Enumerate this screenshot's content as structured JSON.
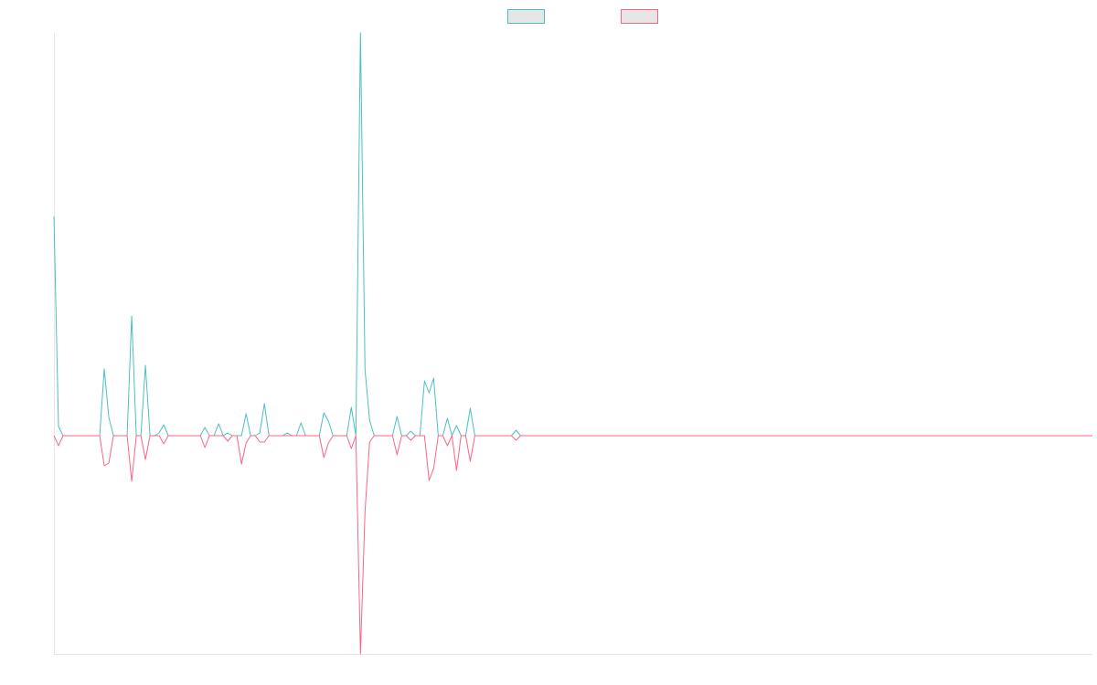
{
  "chart_data": {
    "type": "line",
    "ylim": [
      -23.9,
      44.1
    ],
    "legend": "top",
    "series": [
      {
        "color": "#4bc0c0",
        "values": [
          24,
          1,
          0,
          0,
          0,
          0,
          0,
          0,
          0,
          0,
          0,
          7.3,
          2,
          0,
          0,
          0,
          0,
          13.1,
          0,
          0,
          7.7,
          0,
          0,
          0.3,
          1.2,
          0,
          0,
          0,
          0,
          0,
          0,
          0,
          0,
          0.9,
          0,
          0,
          1.3,
          0,
          0.3,
          0,
          0,
          0,
          2.4,
          0,
          0,
          0.3,
          3.5,
          0,
          0,
          0,
          0,
          0.3,
          0,
          0,
          1.4,
          0,
          0,
          0,
          0,
          2.5,
          1.6,
          0,
          0,
          0,
          0,
          3.1,
          0,
          44.1,
          7.2,
          1.7,
          0,
          0,
          0,
          0,
          0,
          2.1,
          0,
          0,
          0.5,
          0,
          0,
          6,
          4.7,
          6.3,
          0,
          0,
          1.9,
          0,
          1.1,
          0,
          0,
          3,
          0,
          0,
          0,
          0,
          0,
          0,
          0,
          0,
          0,
          0.6,
          0,
          0,
          0,
          0,
          0,
          0,
          0,
          0,
          0,
          0,
          0,
          0,
          0,
          0,
          0,
          0,
          0,
          0,
          0,
          0,
          0,
          0,
          0,
          0,
          0,
          0,
          0,
          0,
          0,
          0,
          0,
          0,
          0,
          0,
          0,
          0,
          0,
          0,
          0,
          0,
          0,
          0,
          0,
          0,
          0,
          0,
          0,
          0,
          0,
          0,
          0,
          0,
          0,
          0,
          0,
          0,
          0,
          0,
          0,
          0,
          0,
          0,
          0,
          0,
          0,
          0,
          0,
          0,
          0,
          0,
          0,
          0,
          0,
          0,
          0,
          0,
          0,
          0,
          0,
          0,
          0,
          0,
          0,
          0,
          0,
          0,
          0,
          0,
          0,
          0,
          0,
          0,
          0,
          0,
          0,
          0,
          0,
          0,
          0,
          0,
          0,
          0,
          0,
          0,
          0,
          0,
          0,
          0,
          0,
          0,
          0,
          0,
          0,
          0,
          0,
          0,
          0,
          0,
          0,
          0,
          0,
          0,
          0,
          0,
          0,
          0
        ]
      },
      {
        "color": "#ff6384",
        "values": [
          0,
          -1.1,
          0,
          0,
          0,
          0,
          0,
          0,
          0,
          0,
          0,
          -3.3,
          -3,
          0,
          0,
          0,
          0,
          -5,
          0,
          0,
          -2.6,
          0,
          0,
          0,
          -0.9,
          0,
          0,
          0,
          0,
          0,
          0,
          0,
          0,
          -1.3,
          0,
          0,
          0,
          0,
          -0.6,
          0,
          0,
          -3.1,
          -0.8,
          0,
          0,
          -0.7,
          -0.7,
          0,
          0,
          0,
          0,
          0,
          0,
          0,
          0,
          0,
          0,
          0,
          0,
          -2.4,
          -0.8,
          0,
          0,
          0,
          0,
          -1.4,
          0,
          -23.9,
          -8.3,
          -0.7,
          0,
          0,
          0,
          0,
          0,
          -2.1,
          0,
          0,
          -0.5,
          0,
          0,
          0,
          -4.9,
          -3.6,
          0,
          0,
          -1.1,
          0,
          -3.8,
          0,
          0,
          -2.8,
          0,
          0,
          0,
          0,
          0,
          0,
          0,
          0,
          0,
          -0.5,
          0,
          0,
          0,
          0,
          0,
          0,
          0,
          0,
          0,
          0,
          0,
          0,
          0,
          0,
          0,
          0,
          0,
          0,
          0,
          0,
          0,
          0,
          0,
          0,
          0,
          0,
          0,
          0,
          0,
          0,
          0,
          0,
          0,
          0,
          0,
          0,
          0,
          0,
          0,
          0,
          0,
          0,
          0,
          0,
          0,
          0,
          0,
          0,
          0,
          0,
          0,
          0,
          0,
          0,
          0,
          0,
          0,
          0,
          0,
          0,
          0,
          0,
          0,
          0,
          0,
          0,
          0,
          0,
          0,
          0,
          0,
          0,
          0,
          0,
          0,
          0,
          0,
          0,
          0,
          0,
          0,
          0,
          0,
          0,
          0,
          0,
          0,
          0,
          0,
          0,
          0,
          0,
          0,
          0,
          0,
          0,
          0,
          0,
          0,
          0,
          0,
          0,
          0,
          0,
          0,
          0,
          0,
          0,
          0,
          0,
          0,
          0,
          0,
          0,
          0,
          0,
          0,
          0,
          0,
          0,
          0,
          0,
          0,
          0,
          0,
          0
        ]
      }
    ]
  }
}
